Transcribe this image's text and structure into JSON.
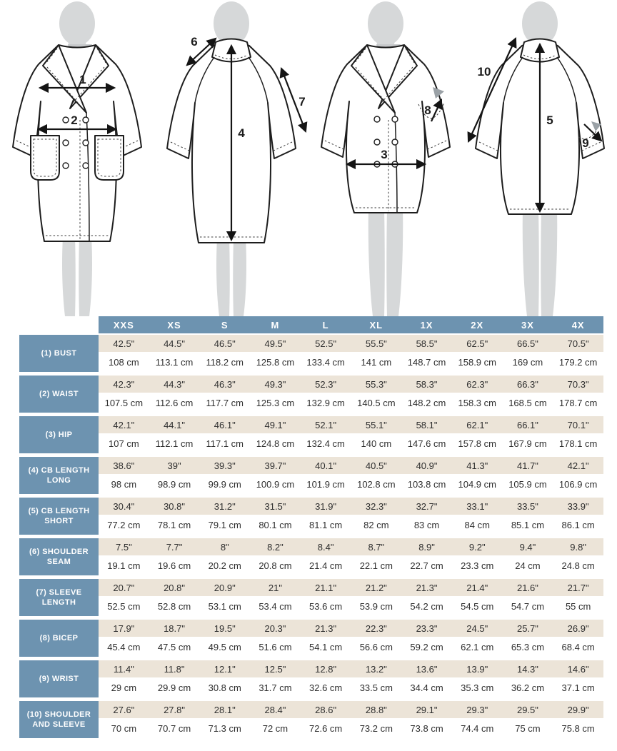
{
  "diagram": {
    "figures": [
      {
        "name": "coat-front-long",
        "view": "front",
        "length": "long"
      },
      {
        "name": "coat-back-long",
        "view": "back",
        "length": "long"
      },
      {
        "name": "coat-front-short",
        "view": "front",
        "length": "short"
      },
      {
        "name": "coat-back-short",
        "view": "back",
        "length": "short"
      }
    ],
    "callouts": {
      "bust": "1",
      "waist": "2",
      "hip": "3",
      "cb_length_long": "4",
      "cb_length_short": "5",
      "shoulder_seam": "6",
      "sleeve_length": "7",
      "bicep": "8",
      "wrist": "9",
      "shoulder_and_sleeve": "10"
    }
  },
  "size_chart": {
    "columns": [
      "XXS",
      "XS",
      "S",
      "M",
      "L",
      "XL",
      "1X",
      "2X",
      "3X",
      "4X"
    ],
    "rows": [
      {
        "label": "(1) BUST",
        "inches": [
          "42.5\"",
          "44.5\"",
          "46.5\"",
          "49.5\"",
          "52.5\"",
          "55.5\"",
          "58.5\"",
          "62.5\"",
          "66.5\"",
          "70.5\""
        ],
        "cm": [
          "108 cm",
          "113.1 cm",
          "118.2 cm",
          "125.8 cm",
          "133.4 cm",
          "141 cm",
          "148.7 cm",
          "158.9 cm",
          "169 cm",
          "179.2 cm"
        ]
      },
      {
        "label": "(2) WAIST",
        "inches": [
          "42.3\"",
          "44.3\"",
          "46.3\"",
          "49.3\"",
          "52.3\"",
          "55.3\"",
          "58.3\"",
          "62.3\"",
          "66.3\"",
          "70.3\""
        ],
        "cm": [
          "107.5 cm",
          "112.6 cm",
          "117.7 cm",
          "125.3 cm",
          "132.9 cm",
          "140.5 cm",
          "148.2 cm",
          "158.3 cm",
          "168.5 cm",
          "178.7 cm"
        ]
      },
      {
        "label": "(3) HIP",
        "inches": [
          "42.1\"",
          "44.1\"",
          "46.1\"",
          "49.1\"",
          "52.1\"",
          "55.1\"",
          "58.1\"",
          "62.1\"",
          "66.1\"",
          "70.1\""
        ],
        "cm": [
          "107 cm",
          "112.1 cm",
          "117.1 cm",
          "124.8 cm",
          "132.4 cm",
          "140 cm",
          "147.6 cm",
          "157.8 cm",
          "167.9 cm",
          "178.1 cm"
        ]
      },
      {
        "label": "(4) CB LENGTH LONG",
        "inches": [
          "38.6\"",
          "39\"",
          "39.3\"",
          "39.7\"",
          "40.1\"",
          "40.5\"",
          "40.9\"",
          "41.3\"",
          "41.7\"",
          "42.1\""
        ],
        "cm": [
          "98 cm",
          "98.9 cm",
          "99.9 cm",
          "100.9 cm",
          "101.9 cm",
          "102.8 cm",
          "103.8 cm",
          "104.9 cm",
          "105.9 cm",
          "106.9 cm"
        ]
      },
      {
        "label": "(5) CB LENGTH SHORT",
        "inches": [
          "30.4\"",
          "30.8\"",
          "31.2\"",
          "31.5\"",
          "31.9\"",
          "32.3\"",
          "32.7\"",
          "33.1\"",
          "33.5\"",
          "33.9\""
        ],
        "cm": [
          "77.2 cm",
          "78.1 cm",
          "79.1 cm",
          "80.1 cm",
          "81.1 cm",
          "82 cm",
          "83 cm",
          "84 cm",
          "85.1 cm",
          "86.1 cm"
        ]
      },
      {
        "label": "(6) SHOULDER SEAM",
        "inches": [
          "7.5\"",
          "7.7\"",
          "8\"",
          "8.2\"",
          "8.4\"",
          "8.7\"",
          "8.9\"",
          "9.2\"",
          "9.4\"",
          "9.8\""
        ],
        "cm": [
          "19.1 cm",
          "19.6 cm",
          "20.2 cm",
          "20.8 cm",
          "21.4 cm",
          "22.1 cm",
          "22.7 cm",
          "23.3 cm",
          "24 cm",
          "24.8 cm"
        ]
      },
      {
        "label": "(7) SLEEVE LENGTH",
        "inches": [
          "20.7\"",
          "20.8\"",
          "20.9\"",
          "21\"",
          "21.1\"",
          "21.2\"",
          "21.3\"",
          "21.4\"",
          "21.6\"",
          "21.7\""
        ],
        "cm": [
          "52.5 cm",
          "52.8 cm",
          "53.1 cm",
          "53.4 cm",
          "53.6 cm",
          "53.9 cm",
          "54.2 cm",
          "54.5 cm",
          "54.7 cm",
          "55 cm"
        ]
      },
      {
        "label": "(8) BICEP",
        "inches": [
          "17.9\"",
          "18.7\"",
          "19.5\"",
          "20.3\"",
          "21.3\"",
          "22.3\"",
          "23.3\"",
          "24.5\"",
          "25.7\"",
          "26.9\""
        ],
        "cm": [
          "45.4 cm",
          "47.5 cm",
          "49.5 cm",
          "51.6 cm",
          "54.1 cm",
          "56.6 cm",
          "59.2 cm",
          "62.1 cm",
          "65.3 cm",
          "68.4 cm"
        ]
      },
      {
        "label": "(9) WRIST",
        "inches": [
          "11.4\"",
          "11.8\"",
          "12.1\"",
          "12.5\"",
          "12.8\"",
          "13.2\"",
          "13.6\"",
          "13.9\"",
          "14.3\"",
          "14.6\""
        ],
        "cm": [
          "29 cm",
          "29.9 cm",
          "30.8 cm",
          "31.7 cm",
          "32.6 cm",
          "33.5 cm",
          "34.4 cm",
          "35.3 cm",
          "36.2 cm",
          "37.1 cm"
        ]
      },
      {
        "label": "(10) SHOULDER AND SLEEVE",
        "inches": [
          "27.6\"",
          "27.8\"",
          "28.1\"",
          "28.4\"",
          "28.6\"",
          "28.8\"",
          "29.1\"",
          "29.3\"",
          "29.5\"",
          "29.9\""
        ],
        "cm": [
          "70 cm",
          "70.7 cm",
          "71.3 cm",
          "72 cm",
          "72.6 cm",
          "73.2 cm",
          "73.8 cm",
          "74.4 cm",
          "75 cm",
          "75.8 cm"
        ]
      }
    ]
  },
  "colors": {
    "header_blue": "#6d93b0",
    "row_beige": "#ece4d8",
    "row_white": "#ffffff",
    "text_dark": "#2e2e2e",
    "silhouette_gray": "#d6d8d9",
    "line_black": "#1d1d1d"
  }
}
